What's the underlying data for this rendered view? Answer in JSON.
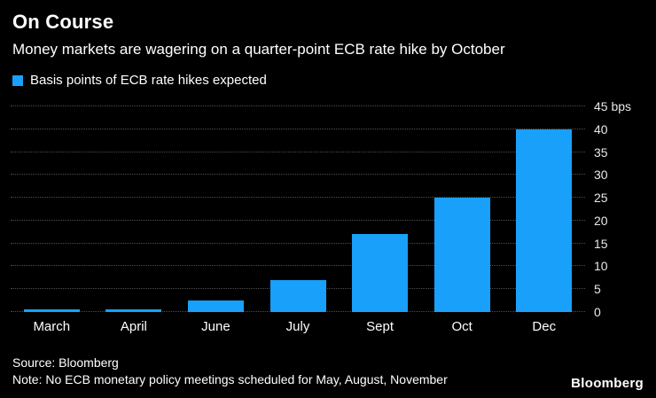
{
  "header": {
    "title": "On Course",
    "subtitle": "Money markets are wagering on a quarter-point ECB rate hike by October"
  },
  "legend": {
    "label": "Basis points of ECB rate hikes expected",
    "color": "#18A0FB"
  },
  "chart_data": {
    "type": "bar",
    "categories": [
      "March",
      "April",
      "June",
      "July",
      "Sept",
      "Oct",
      "Dec"
    ],
    "values": [
      0.5,
      0.5,
      2.5,
      7,
      17,
      25,
      40
    ],
    "title": "On Course",
    "xlabel": "",
    "ylabel": "bps",
    "ylim": [
      0,
      45
    ],
    "yticks": [
      0,
      5,
      10,
      15,
      20,
      25,
      30,
      35,
      40,
      45
    ],
    "ytick_labels": [
      "0",
      "5",
      "10",
      "15",
      "20",
      "25",
      "30",
      "35",
      "40",
      "45 bps"
    ],
    "bar_color": "#18A0FB",
    "grid": "dotted-horizontal",
    "legend_position": "top-left",
    "y_axis_side": "right"
  },
  "footer": {
    "source": "Source: Bloomberg",
    "note": "Note: No ECB monetary policy meetings scheduled for May, August, November",
    "logo": "Bloomberg"
  }
}
